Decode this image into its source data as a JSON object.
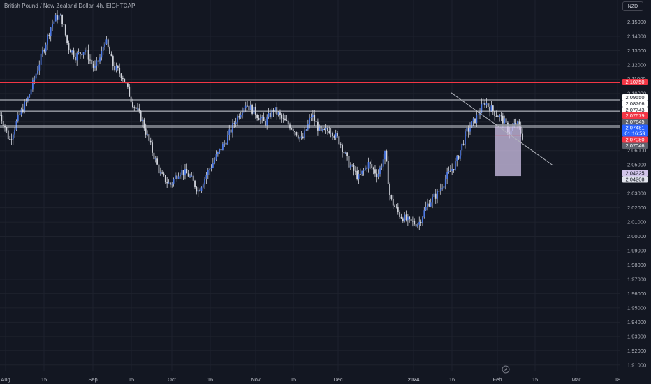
{
  "header": {
    "title": "British Pound / New Zealand Dollar, 4h, EIGHTCAP",
    "currency_button": "NZD"
  },
  "colors": {
    "background": "#131722",
    "grid": "#1e222d",
    "candle": "#4e7be8",
    "wick": "#d1d4dc",
    "red_line": "#f23645",
    "white_line": "#d1d4dc",
    "trendline": "#b2b5be",
    "position_zone": "#d1c4e9",
    "current_price_badge": "#2962ff"
  },
  "chart_data": {
    "type": "candlestick",
    "symbol": "British Pound / New Zealand Dollar",
    "timeframe": "4h",
    "source": "EIGHTCAP",
    "x_ticks": [
      "Aug",
      "15",
      "Sep",
      "15",
      "Oct",
      "16",
      "Nov",
      "15",
      "Dec",
      "2024",
      "16",
      "Feb",
      "15",
      "Mar",
      "18"
    ],
    "y_ticks": [
      "2.15000",
      "2.14000",
      "2.13000",
      "2.12000",
      "2.11000",
      "2.10000",
      "2.09000",
      "2.08000",
      "2.07000",
      "2.06000",
      "2.05000",
      "2.04000",
      "2.03000",
      "2.02000",
      "2.01000",
      "2.00000",
      "1.99000",
      "1.98000",
      "1.97000",
      "1.96000",
      "1.95000",
      "1.94000",
      "1.93000",
      "1.92000",
      "1.91000"
    ],
    "ylim": [
      1.905,
      2.16
    ],
    "price_path": [
      [
        0,
        2.085
      ],
      [
        0.007,
        2.078
      ],
      [
        0.015,
        2.067
      ],
      [
        0.03,
        2.084
      ],
      [
        0.045,
        2.097
      ],
      [
        0.06,
        2.118
      ],
      [
        0.07,
        2.132
      ],
      [
        0.08,
        2.146
      ],
      [
        0.09,
        2.154
      ],
      [
        0.098,
        2.153
      ],
      [
        0.108,
        2.133
      ],
      [
        0.12,
        2.126
      ],
      [
        0.135,
        2.131
      ],
      [
        0.15,
        2.117
      ],
      [
        0.16,
        2.126
      ],
      [
        0.167,
        2.138
      ],
      [
        0.18,
        2.119
      ],
      [
        0.195,
        2.112
      ],
      [
        0.21,
        2.094
      ],
      [
        0.225,
        2.082
      ],
      [
        0.24,
        2.062
      ],
      [
        0.255,
        2.043
      ],
      [
        0.27,
        2.036
      ],
      [
        0.285,
        2.046
      ],
      [
        0.3,
        2.043
      ],
      [
        0.315,
        2.032
      ],
      [
        0.33,
        2.045
      ],
      [
        0.345,
        2.057
      ],
      [
        0.36,
        2.068
      ],
      [
        0.375,
        2.082
      ],
      [
        0.39,
        2.093
      ],
      [
        0.405,
        2.087
      ],
      [
        0.42,
        2.079
      ],
      [
        0.435,
        2.089
      ],
      [
        0.45,
        2.081
      ],
      [
        0.465,
        2.076
      ],
      [
        0.48,
        2.067
      ],
      [
        0.495,
        2.085
      ],
      [
        0.51,
        2.072
      ],
      [
        0.525,
        2.075
      ],
      [
        0.54,
        2.066
      ],
      [
        0.555,
        2.05
      ],
      [
        0.57,
        2.041
      ],
      [
        0.585,
        2.051
      ],
      [
        0.6,
        2.043
      ],
      [
        0.612,
        2.058
      ],
      [
        0.62,
        2.026
      ],
      [
        0.635,
        2.015
      ],
      [
        0.65,
        2.01
      ],
      [
        0.665,
        2.009
      ],
      [
        0.68,
        2.023
      ],
      [
        0.695,
        2.03
      ],
      [
        0.71,
        2.042
      ],
      [
        0.725,
        2.052
      ],
      [
        0.74,
        2.072
      ],
      [
        0.755,
        2.082
      ],
      [
        0.77,
        2.094
      ],
      [
        0.785,
        2.087
      ],
      [
        0.8,
        2.081
      ],
      [
        0.81,
        2.072
      ],
      [
        0.82,
        2.08
      ],
      [
        0.83,
        2.07
      ]
    ],
    "horizontal_levels": [
      {
        "price": 2.1075,
        "label": "2.10750",
        "color": "red"
      },
      {
        "price": 2.0955,
        "label": "2.09550",
        "color": "white"
      },
      {
        "price": 2.08766,
        "label": "2.08766",
        "color": "white"
      },
      {
        "price": 2.07743,
        "label": "2.07743",
        "color": "white"
      },
      {
        "price": 2.07645,
        "label": "2.07645",
        "color": "white"
      }
    ],
    "trendline": {
      "from": [
        "Jan 17",
        2.1005
      ],
      "to": [
        "Feb 20",
        2.0495
      ]
    },
    "price_badges": [
      {
        "label": "2.10750",
        "bg": "#f23645",
        "fg": "#ffffff",
        "price": 2.1075
      },
      {
        "label": "2.09550",
        "bg": "#ffffff",
        "fg": "#131722",
        "price": 2.0955
      },
      {
        "label": "2.08766",
        "bg": "#ffffff",
        "fg": "#131722",
        "price": 2.08766
      },
      {
        "label": "2.07743",
        "bg": "#ffffff",
        "fg": "#131722",
        "price": 2.07743
      },
      {
        "label": "2.07679",
        "bg": "#f23645",
        "fg": "#ffffff",
        "price": 2.07679
      },
      {
        "label": "2.07645",
        "bg": "#5d606b",
        "fg": "#ffffff",
        "price": 2.07645
      },
      {
        "label": "2.07481",
        "bg": "#2962ff",
        "fg": "#ffffff",
        "price": 2.07481
      },
      {
        "label": "01:16:59",
        "bg": "#2962ff",
        "fg": "#ffffff",
        "price": 2.07481
      },
      {
        "label": "2.07046",
        "bg": "#5d606b",
        "fg": "#ffffff",
        "price": 2.07046
      },
      {
        "label": "2.07080",
        "bg": "#f23645",
        "fg": "#ffffff",
        "price": 2.0708
      },
      {
        "label": "2.04225",
        "bg": "#d1c4e9",
        "fg": "#131722",
        "price": 2.04225
      },
      {
        "label": "2.04208",
        "bg": "#e0e3eb",
        "fg": "#131722",
        "price": 2.04208
      }
    ],
    "position_tool": {
      "entry": 2.07679,
      "stop": 2.0708,
      "target": 2.04225
    }
  }
}
